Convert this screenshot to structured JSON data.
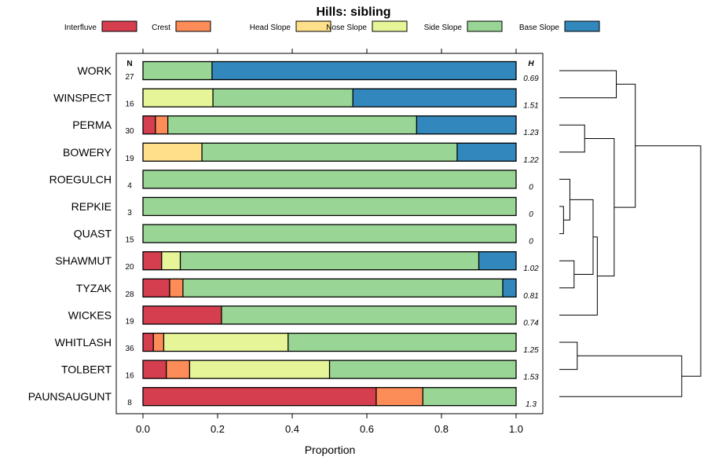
{
  "chart_data": {
    "type": "bar",
    "subtype": "stacked-horizontal-proportion",
    "title": "Hills: sibling",
    "xlabel": "Proportion",
    "xlim": [
      -0.05,
      1.05
    ],
    "xticks": [
      0.0,
      0.2,
      0.4,
      0.6,
      0.8,
      1.0
    ],
    "xtick_labels": [
      "0.0",
      "0.2",
      "0.4",
      "0.6",
      "0.8",
      "1.0"
    ],
    "n_header": "N",
    "h_header": "H",
    "legend_position": "top",
    "series": [
      {
        "name": "Interfluve",
        "color": "#D53E4F"
      },
      {
        "name": "Crest",
        "color": "#FC8D59"
      },
      {
        "name": "Head Slope",
        "color": "#FEE08B"
      },
      {
        "name": "Nose Slope",
        "color": "#E6F598"
      },
      {
        "name": "Side Slope",
        "color": "#99D594"
      },
      {
        "name": "Base Slope",
        "color": "#3288BD"
      }
    ],
    "rows": [
      {
        "name": "WORK",
        "n": "27",
        "h": "0.69",
        "values": [
          0,
          0,
          0,
          0,
          0.185,
          0.815
        ]
      },
      {
        "name": "WINSPECT",
        "n": "16",
        "h": "1.51",
        "values": [
          0,
          0,
          0,
          0.1875,
          0.375,
          0.4375
        ]
      },
      {
        "name": "PERMA",
        "n": "30",
        "h": "1.23",
        "values": [
          0.0333,
          0.0333,
          0,
          0,
          0.6667,
          0.2667
        ]
      },
      {
        "name": "BOWERY",
        "n": "19",
        "h": "1.22",
        "values": [
          0,
          0,
          0.158,
          0,
          0.684,
          0.158
        ]
      },
      {
        "name": "ROEGULCH",
        "n": "4",
        "h": "0",
        "values": [
          0,
          0,
          0,
          0,
          1.0,
          0
        ]
      },
      {
        "name": "REPKIE",
        "n": "3",
        "h": "0",
        "values": [
          0,
          0,
          0,
          0,
          1.0,
          0
        ]
      },
      {
        "name": "QUAST",
        "n": "15",
        "h": "0",
        "values": [
          0,
          0,
          0,
          0,
          1.0,
          0
        ]
      },
      {
        "name": "SHAWMUT",
        "n": "20",
        "h": "1.02",
        "values": [
          0.05,
          0,
          0,
          0.05,
          0.8,
          0.1
        ]
      },
      {
        "name": "TYZAK",
        "n": "28",
        "h": "0.81",
        "values": [
          0.0714,
          0.0357,
          0,
          0,
          0.8571,
          0.0357
        ]
      },
      {
        "name": "WICKES",
        "n": "19",
        "h": "0.74",
        "values": [
          0.2105,
          0,
          0,
          0,
          0.7895,
          0
        ]
      },
      {
        "name": "WHITLASH",
        "n": "36",
        "h": "1.25",
        "values": [
          0.0278,
          0.0278,
          0,
          0.3333,
          0.6111,
          0
        ]
      },
      {
        "name": "TOLBERT",
        "n": "16",
        "h": "1.53",
        "values": [
          0.0625,
          0.0625,
          0,
          0.375,
          0.5,
          0
        ]
      },
      {
        "name": "PAUNSAUGUNT",
        "n": "8",
        "h": "1.3",
        "values": [
          0.625,
          0.125,
          0,
          0,
          0.25,
          0
        ]
      }
    ],
    "dendrogram": {
      "merges": [
        {
          "a": "REPKIE",
          "b": "QUAST",
          "height": 0.02
        },
        {
          "a": "ROEGULCH",
          "b": "m0",
          "height": 0.05
        },
        {
          "a": "SHAWMUT",
          "b": "TYZAK",
          "height": 0.07
        },
        {
          "a": "m1",
          "b": "m2",
          "height": 0.16
        },
        {
          "a": "WHITLASH",
          "b": "TOLBERT",
          "height": 0.085
        },
        {
          "a": "PERMA",
          "b": "BOWERY",
          "height": 0.12
        },
        {
          "a": "m3",
          "b": "WICKES",
          "height": 0.18
        },
        {
          "a": "WORK",
          "b": "WINSPECT",
          "height": 0.27
        },
        {
          "a": "m5",
          "b": "m6",
          "height": 0.26
        },
        {
          "a": "m8",
          "b": "m7",
          "height": 0.36
        },
        {
          "a": "m4",
          "b": "PAUNSAUGUNT",
          "height": 0.58
        },
        {
          "a": "m9",
          "b": "m10",
          "height": 0.67
        }
      ]
    }
  }
}
